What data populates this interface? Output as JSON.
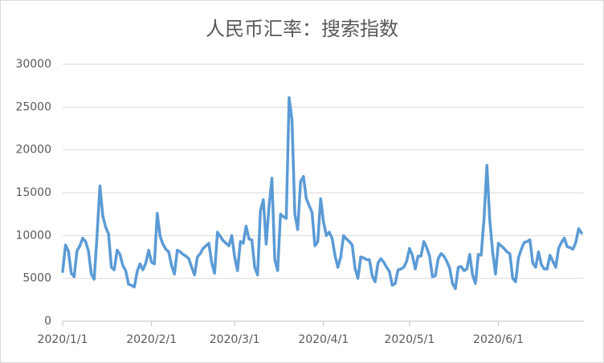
{
  "chart_data": {
    "type": "line",
    "title": "人民币汇率：搜索指数",
    "x": [
      "2020/1/1",
      "2020/1/2",
      "2020/1/3",
      "2020/1/4",
      "2020/1/5",
      "2020/1/6",
      "2020/1/7",
      "2020/1/8",
      "2020/1/9",
      "2020/1/10",
      "2020/1/11",
      "2020/1/12",
      "2020/1/13",
      "2020/1/14",
      "2020/1/15",
      "2020/1/16",
      "2020/1/17",
      "2020/1/18",
      "2020/1/19",
      "2020/1/20",
      "2020/1/21",
      "2020/1/22",
      "2020/1/23",
      "2020/1/24",
      "2020/1/25",
      "2020/1/26",
      "2020/1/27",
      "2020/1/28",
      "2020/1/29",
      "2020/1/30",
      "2020/1/31",
      "2020/2/1",
      "2020/2/2",
      "2020/2/3",
      "2020/2/4",
      "2020/2/5",
      "2020/2/6",
      "2020/2/7",
      "2020/2/8",
      "2020/2/9",
      "2020/2/10",
      "2020/2/11",
      "2020/2/12",
      "2020/2/13",
      "2020/2/14",
      "2020/2/15",
      "2020/2/16",
      "2020/2/17",
      "2020/2/18",
      "2020/2/19",
      "2020/2/20",
      "2020/2/21",
      "2020/2/22",
      "2020/2/23",
      "2020/2/24",
      "2020/2/25",
      "2020/2/26",
      "2020/2/27",
      "2020/2/28",
      "2020/2/29",
      "2020/3/1",
      "2020/3/2",
      "2020/3/3",
      "2020/3/4",
      "2020/3/5",
      "2020/3/6",
      "2020/3/7",
      "2020/3/8",
      "2020/3/9",
      "2020/3/10",
      "2020/3/11",
      "2020/3/12",
      "2020/3/13",
      "2020/3/14",
      "2020/3/15",
      "2020/3/16",
      "2020/3/17",
      "2020/3/18",
      "2020/3/19",
      "2020/3/20",
      "2020/3/21",
      "2020/3/22",
      "2020/3/23",
      "2020/3/24",
      "2020/3/25",
      "2020/3/26",
      "2020/3/27",
      "2020/3/28",
      "2020/3/29",
      "2020/3/30",
      "2020/3/31",
      "2020/4/1",
      "2020/4/2",
      "2020/4/3",
      "2020/4/4",
      "2020/4/5",
      "2020/4/6",
      "2020/4/7",
      "2020/4/8",
      "2020/4/9",
      "2020/4/10",
      "2020/4/11",
      "2020/4/12",
      "2020/4/13",
      "2020/4/14",
      "2020/4/15",
      "2020/4/16",
      "2020/4/17",
      "2020/4/18",
      "2020/4/19",
      "2020/4/20",
      "2020/4/21",
      "2020/4/22",
      "2020/4/23",
      "2020/4/24",
      "2020/4/25",
      "2020/4/26",
      "2020/4/27",
      "2020/4/28",
      "2020/4/29",
      "2020/4/30",
      "2020/5/1",
      "2020/5/2",
      "2020/5/3",
      "2020/5/4",
      "2020/5/5",
      "2020/5/6",
      "2020/5/7",
      "2020/5/8",
      "2020/5/9",
      "2020/5/10",
      "2020/5/11",
      "2020/5/12",
      "2020/5/13",
      "2020/5/14",
      "2020/5/15",
      "2020/5/16",
      "2020/5/17",
      "2020/5/18",
      "2020/5/19",
      "2020/5/20",
      "2020/5/21",
      "2020/5/22",
      "2020/5/23",
      "2020/5/24",
      "2020/5/25",
      "2020/5/26",
      "2020/5/27",
      "2020/5/28",
      "2020/5/29",
      "2020/5/30",
      "2020/5/31",
      "2020/6/1",
      "2020/6/2",
      "2020/6/3",
      "2020/6/4",
      "2020/6/5",
      "2020/6/6",
      "2020/6/7",
      "2020/6/8",
      "2020/6/9",
      "2020/6/10",
      "2020/6/11",
      "2020/6/12",
      "2020/6/13",
      "2020/6/14",
      "2020/6/15",
      "2020/6/16",
      "2020/6/17",
      "2020/6/18",
      "2020/6/19",
      "2020/6/20",
      "2020/6/21",
      "2020/6/22",
      "2020/6/23",
      "2020/6/24",
      "2020/6/25",
      "2020/6/26",
      "2020/6/27",
      "2020/6/28",
      "2020/6/29",
      "2020/6/30"
    ],
    "values": [
      5800,
      8900,
      8200,
      5600,
      5200,
      8200,
      8800,
      9700,
      9300,
      8200,
      5500,
      4900,
      10000,
      15800,
      12300,
      11000,
      10200,
      6300,
      6000,
      8300,
      7800,
      6500,
      5900,
      4300,
      4200,
      4000,
      5800,
      6700,
      6000,
      6800,
      8300,
      6900,
      6700,
      12600,
      9900,
      9000,
      8400,
      8100,
      6500,
      5500,
      8300,
      8100,
      7800,
      7600,
      7300,
      6300,
      5400,
      7500,
      7900,
      8500,
      8800,
      9100,
      6800,
      5600,
      10400,
      9900,
      9400,
      9100,
      8800,
      10000,
      7500,
      5900,
      9300,
      9100,
      11100,
      9600,
      9500,
      6300,
      5400,
      12900,
      14200,
      9000,
      13400,
      16700,
      7200,
      5900,
      12500,
      12200,
      12000,
      26100,
      23500,
      12500,
      10700,
      16300,
      16900,
      14300,
      13500,
      12700,
      8800,
      9300,
      14300,
      11600,
      10000,
      10400,
      9700,
      7700,
      6300,
      7500,
      10000,
      9600,
      9300,
      8900,
      6200,
      5000,
      7500,
      7400,
      7200,
      7200,
      5300,
      4600,
      6800,
      7300,
      6900,
      6300,
      5800,
      4200,
      4400,
      6000,
      6100,
      6300,
      7000,
      8500,
      7700,
      6100,
      7600,
      7600,
      9300,
      8600,
      7600,
      5200,
      5300,
      7300,
      7900,
      7600,
      7000,
      6200,
      4400,
      3800,
      6300,
      6400,
      5900,
      6100,
      7800,
      5400,
      4400,
      7800,
      7700,
      12000,
      18200,
      11800,
      8100,
      5500,
      9100,
      8800,
      8500,
      8100,
      7900,
      5000,
      4600,
      7400,
      8400,
      9200,
      9300,
      9500,
      6800,
      6300,
      8100,
      6600,
      6100,
      6100,
      7700,
      7000,
      6300,
      8500,
      9200,
      9700,
      8700,
      8600,
      8400,
      9200,
      10800,
      10300
    ],
    "color": "#5b9bd5",
    "xticks": [
      "2020/1/1",
      "2020/2/1",
      "2020/3/1",
      "2020/4/1",
      "2020/5/1",
      "2020/6/1"
    ],
    "ylim": [
      0,
      30000
    ],
    "yticks": [
      0,
      5000,
      10000,
      15000,
      20000,
      25000,
      30000
    ],
    "grid": true
  }
}
